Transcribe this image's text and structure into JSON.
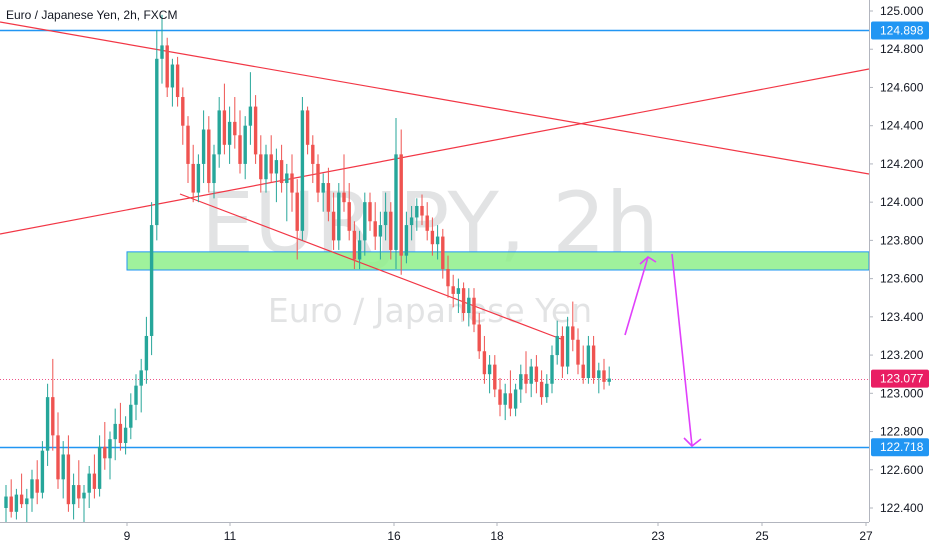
{
  "header": {
    "title": "Euro / Japanese Yen, 2h, FXCM"
  },
  "watermark": {
    "symbol": "EURJPY, 2h",
    "name": "Euro / Japanese Yen"
  },
  "colors": {
    "up": "#26a69a",
    "down": "#ef5350",
    "trendline": "#f23645",
    "level": "#2196f3",
    "zone_fill": "#8ef08b",
    "zone_border": "#2196f3",
    "arrow": "#e040fb",
    "current_price": "#e91e63"
  },
  "chart_data": {
    "type": "candlestick",
    "title": "Euro / Japanese Yen, 2h, FXCM",
    "x_ticks": [
      "9",
      "11",
      "16",
      "18",
      "23",
      "25",
      "27"
    ],
    "y_ticks": [
      "125.000",
      "124.800",
      "124.600",
      "124.400",
      "124.200",
      "124.000",
      "123.800",
      "123.600",
      "123.400",
      "123.200",
      "123.000",
      "122.800",
      "122.600",
      "122.400"
    ],
    "ylim": [
      122.33,
      125.07
    ],
    "horizontal_levels": [
      {
        "price": 124.898,
        "label": "124.898"
      },
      {
        "price": 122.718,
        "label": "122.718"
      }
    ],
    "current_price": {
      "price": 123.077,
      "label": "123.077"
    },
    "zone": {
      "from": 123.645,
      "to": 123.74
    },
    "candles": [
      [
        122.4,
        122.52,
        122.32,
        122.46
      ],
      [
        122.46,
        122.55,
        122.35,
        122.38
      ],
      [
        122.38,
        122.5,
        122.34,
        122.47
      ],
      [
        122.47,
        122.58,
        122.4,
        122.42
      ],
      [
        122.42,
        122.5,
        122.32,
        122.45
      ],
      [
        122.45,
        122.6,
        122.38,
        122.55
      ],
      [
        122.55,
        122.65,
        122.42,
        122.48
      ],
      [
        122.48,
        122.75,
        122.45,
        122.7
      ],
      [
        122.7,
        123.05,
        122.62,
        122.98
      ],
      [
        122.98,
        123.18,
        122.7,
        122.78
      ],
      [
        122.78,
        122.9,
        122.5,
        122.55
      ],
      [
        122.55,
        122.75,
        122.45,
        122.68
      ],
      [
        122.68,
        122.78,
        122.38,
        122.42
      ],
      [
        122.42,
        122.58,
        122.34,
        122.52
      ],
      [
        122.52,
        122.65,
        122.4,
        122.45
      ],
      [
        122.45,
        122.52,
        122.32,
        122.48
      ],
      [
        122.48,
        122.62,
        122.4,
        122.58
      ],
      [
        122.58,
        122.68,
        122.45,
        122.5
      ],
      [
        122.5,
        122.78,
        122.46,
        122.72
      ],
      [
        122.72,
        122.85,
        122.6,
        122.66
      ],
      [
        122.66,
        122.8,
        122.55,
        122.76
      ],
      [
        122.76,
        122.92,
        122.65,
        122.84
      ],
      [
        122.84,
        122.95,
        122.7,
        122.74
      ],
      [
        122.74,
        122.88,
        122.68,
        122.82
      ],
      [
        122.82,
        123.0,
        122.76,
        122.94
      ],
      [
        122.94,
        123.1,
        122.86,
        123.04
      ],
      [
        123.04,
        123.18,
        122.9,
        123.12
      ],
      [
        123.12,
        123.4,
        123.05,
        123.3
      ],
      [
        123.3,
        124.0,
        123.2,
        123.88
      ],
      [
        123.88,
        124.9,
        123.8,
        124.75
      ],
      [
        124.75,
        124.98,
        124.62,
        124.82
      ],
      [
        124.82,
        124.86,
        124.55,
        124.6
      ],
      [
        124.6,
        124.75,
        124.5,
        124.72
      ],
      [
        124.72,
        124.76,
        124.5,
        124.55
      ],
      [
        124.55,
        124.6,
        124.3,
        124.4
      ],
      [
        124.4,
        124.45,
        124.1,
        124.2
      ],
      [
        124.2,
        124.3,
        124.0,
        124.05
      ],
      [
        124.05,
        124.25,
        124.0,
        124.2
      ],
      [
        124.2,
        124.48,
        124.1,
        124.38
      ],
      [
        124.38,
        124.45,
        124.05,
        124.1
      ],
      [
        124.1,
        124.3,
        124.02,
        124.25
      ],
      [
        124.25,
        124.55,
        124.18,
        124.48
      ],
      [
        124.48,
        124.62,
        124.25,
        124.3
      ],
      [
        124.3,
        124.5,
        124.2,
        124.42
      ],
      [
        124.42,
        124.55,
        124.28,
        124.35
      ],
      [
        124.35,
        124.48,
        124.15,
        124.2
      ],
      [
        124.2,
        124.45,
        124.12,
        124.4
      ],
      [
        124.4,
        124.68,
        124.3,
        124.5
      ],
      [
        124.5,
        124.56,
        124.2,
        124.25
      ],
      [
        124.25,
        124.35,
        124.05,
        124.12
      ],
      [
        124.12,
        124.3,
        124.05,
        124.25
      ],
      [
        124.25,
        124.35,
        124.1,
        124.15
      ],
      [
        124.15,
        124.28,
        124.0,
        124.22
      ],
      [
        124.22,
        124.3,
        124.05,
        124.1
      ],
      [
        124.1,
        124.2,
        123.9,
        124.15
      ],
      [
        124.15,
        124.25,
        123.95,
        124.05
      ],
      [
        124.05,
        124.12,
        123.7,
        123.85
      ],
      [
        123.85,
        124.55,
        123.8,
        124.48
      ],
      [
        124.48,
        124.5,
        124.25,
        124.3
      ],
      [
        124.3,
        124.35,
        124.1,
        124.2
      ],
      [
        124.2,
        124.25,
        124.0,
        124.05
      ],
      [
        124.05,
        124.15,
        123.95,
        124.1
      ],
      [
        124.1,
        124.18,
        123.9,
        123.95
      ],
      [
        123.95,
        124.05,
        123.75,
        123.8
      ],
      [
        123.8,
        124.1,
        123.75,
        124.05
      ],
      [
        124.05,
        124.25,
        123.95,
        124.0
      ],
      [
        124.0,
        124.1,
        123.8,
        123.85
      ],
      [
        123.85,
        123.9,
        123.65,
        123.7
      ],
      [
        123.7,
        123.85,
        123.65,
        123.8
      ],
      [
        123.8,
        124.05,
        123.72,
        124.0
      ],
      [
        124.0,
        124.05,
        123.85,
        123.9
      ],
      [
        123.9,
        124.0,
        123.75,
        123.82
      ],
      [
        123.82,
        123.95,
        123.7,
        123.88
      ],
      [
        123.88,
        124.05,
        123.8,
        123.95
      ],
      [
        123.95,
        124.0,
        123.7,
        123.75
      ],
      [
        123.75,
        124.44,
        123.65,
        124.25
      ],
      [
        124.25,
        124.38,
        123.62,
        123.72
      ],
      [
        123.72,
        123.95,
        123.68,
        123.88
      ],
      [
        123.88,
        123.98,
        123.8,
        123.92
      ],
      [
        123.92,
        124.02,
        123.85,
        123.98
      ],
      [
        123.98,
        124.04,
        123.88,
        123.93
      ],
      [
        123.93,
        124.0,
        123.8,
        123.85
      ],
      [
        123.85,
        123.92,
        123.72,
        123.78
      ],
      [
        123.78,
        123.88,
        123.7,
        123.82
      ],
      [
        123.82,
        123.86,
        123.6,
        123.65
      ],
      [
        123.65,
        123.72,
        123.5,
        123.56
      ],
      [
        123.56,
        123.62,
        123.45,
        123.52
      ],
      [
        123.52,
        123.6,
        123.42,
        123.55
      ],
      [
        123.55,
        123.58,
        123.38,
        123.42
      ],
      [
        123.42,
        123.55,
        123.35,
        123.5
      ],
      [
        123.5,
        123.55,
        123.32,
        123.36
      ],
      [
        123.36,
        123.42,
        123.18,
        123.22
      ],
      [
        123.22,
        123.3,
        123.05,
        123.1
      ],
      [
        123.1,
        123.2,
        123.0,
        123.15
      ],
      [
        123.15,
        123.2,
        122.98,
        123.02
      ],
      [
        123.02,
        123.08,
        122.88,
        122.94
      ],
      [
        122.94,
        123.05,
        122.86,
        123.0
      ],
      [
        123.0,
        123.12,
        122.88,
        122.92
      ],
      [
        122.92,
        123.05,
        122.88,
        123.02
      ],
      [
        123.02,
        123.15,
        122.95,
        123.1
      ],
      [
        123.1,
        123.22,
        123.0,
        123.05
      ],
      [
        123.05,
        123.18,
        122.98,
        123.14
      ],
      [
        123.14,
        123.2,
        123.0,
        123.06
      ],
      [
        123.06,
        123.12,
        122.94,
        122.98
      ],
      [
        122.98,
        123.1,
        122.95,
        123.05
      ],
      [
        123.05,
        123.25,
        123.0,
        123.2
      ],
      [
        123.2,
        123.38,
        123.15,
        123.3
      ],
      [
        123.3,
        123.35,
        123.08,
        123.14
      ],
      [
        123.14,
        123.4,
        123.1,
        123.35
      ],
      [
        123.35,
        123.48,
        123.22,
        123.28
      ],
      [
        123.28,
        123.34,
        123.1,
        123.15
      ],
      [
        123.15,
        123.25,
        123.05,
        123.08
      ],
      [
        123.08,
        123.3,
        123.05,
        123.25
      ],
      [
        123.25,
        123.3,
        123.05,
        123.08
      ],
      [
        123.08,
        123.16,
        123.0,
        123.12
      ],
      [
        123.12,
        123.18,
        123.02,
        123.06
      ],
      [
        123.06,
        123.14,
        123.04,
        123.077
      ]
    ]
  }
}
